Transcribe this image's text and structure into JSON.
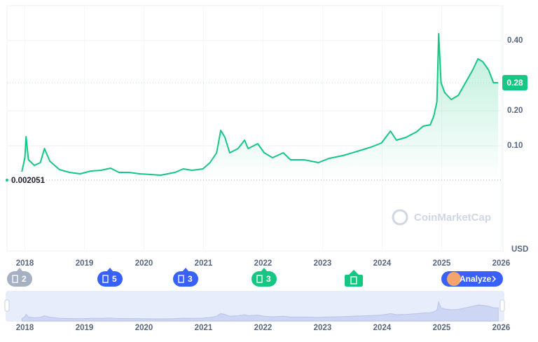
{
  "chart_data": {
    "type": "line",
    "x": [
      2017.95,
      2018.0,
      2018.02,
      2018.06,
      2018.16,
      2018.26,
      2018.33,
      2018.42,
      2018.58,
      2018.75,
      2018.93,
      2019.11,
      2019.28,
      2019.44,
      2019.58,
      2019.75,
      2019.93,
      2020.11,
      2020.28,
      2020.52,
      2020.66,
      2020.81,
      2020.99,
      2021.11,
      2021.22,
      2021.29,
      2021.36,
      2021.44,
      2021.58,
      2021.69,
      2021.75,
      2021.91,
      2022.02,
      2022.16,
      2022.34,
      2022.46,
      2022.69,
      2022.93,
      2023.11,
      2023.34,
      2023.58,
      2023.81,
      2023.99,
      2024.14,
      2024.24,
      2024.4,
      2024.58,
      2024.69,
      2024.81,
      2024.87,
      2024.92,
      2024.95,
      2024.99,
      2025.05,
      2025.16,
      2025.28,
      2025.4,
      2025.52,
      2025.61,
      2025.69,
      2025.79,
      2025.87,
      2025.95
    ],
    "values": [
      0.026,
      0.066,
      0.126,
      0.06,
      0.044,
      0.052,
      0.092,
      0.056,
      0.032,
      0.024,
      0.02,
      0.028,
      0.03,
      0.036,
      0.024,
      0.024,
      0.02,
      0.018,
      0.016,
      0.024,
      0.034,
      0.03,
      0.034,
      0.052,
      0.08,
      0.144,
      0.124,
      0.08,
      0.092,
      0.116,
      0.092,
      0.106,
      0.08,
      0.066,
      0.08,
      0.06,
      0.06,
      0.052,
      0.064,
      0.072,
      0.084,
      0.096,
      0.108,
      0.142,
      0.116,
      0.124,
      0.14,
      0.156,
      0.16,
      0.186,
      0.226,
      0.42,
      0.28,
      0.252,
      0.232,
      0.244,
      0.28,
      0.316,
      0.348,
      0.34,
      0.316,
      0.28,
      0.28
    ],
    "color": "#16c784",
    "xlim": [
      2017.7,
      2026.03
    ],
    "xticks": [
      2018,
      2019,
      2020,
      2021,
      2022,
      2023,
      2024,
      2025,
      2026
    ],
    "ylim": [
      -0.2,
      0.5
    ],
    "yticks": [
      {
        "value": 0.1,
        "label": "0.10"
      },
      {
        "value": 0.2,
        "label": "0.20"
      },
      {
        "value": 0.4,
        "label": "0.40"
      }
    ],
    "y_unit": "USD",
    "current_price": 0.28,
    "reference_price": 0.002051,
    "grid": true,
    "watermark": "CoinMarketCap"
  },
  "events": [
    {
      "count": 2,
      "color": "#a6b0c3"
    },
    {
      "count": 5,
      "color": "#3861fb"
    },
    {
      "count": 3,
      "color": "#3861fb"
    },
    {
      "count": 3,
      "color": "#16c784"
    }
  ],
  "analyze_button": "Analyze"
}
